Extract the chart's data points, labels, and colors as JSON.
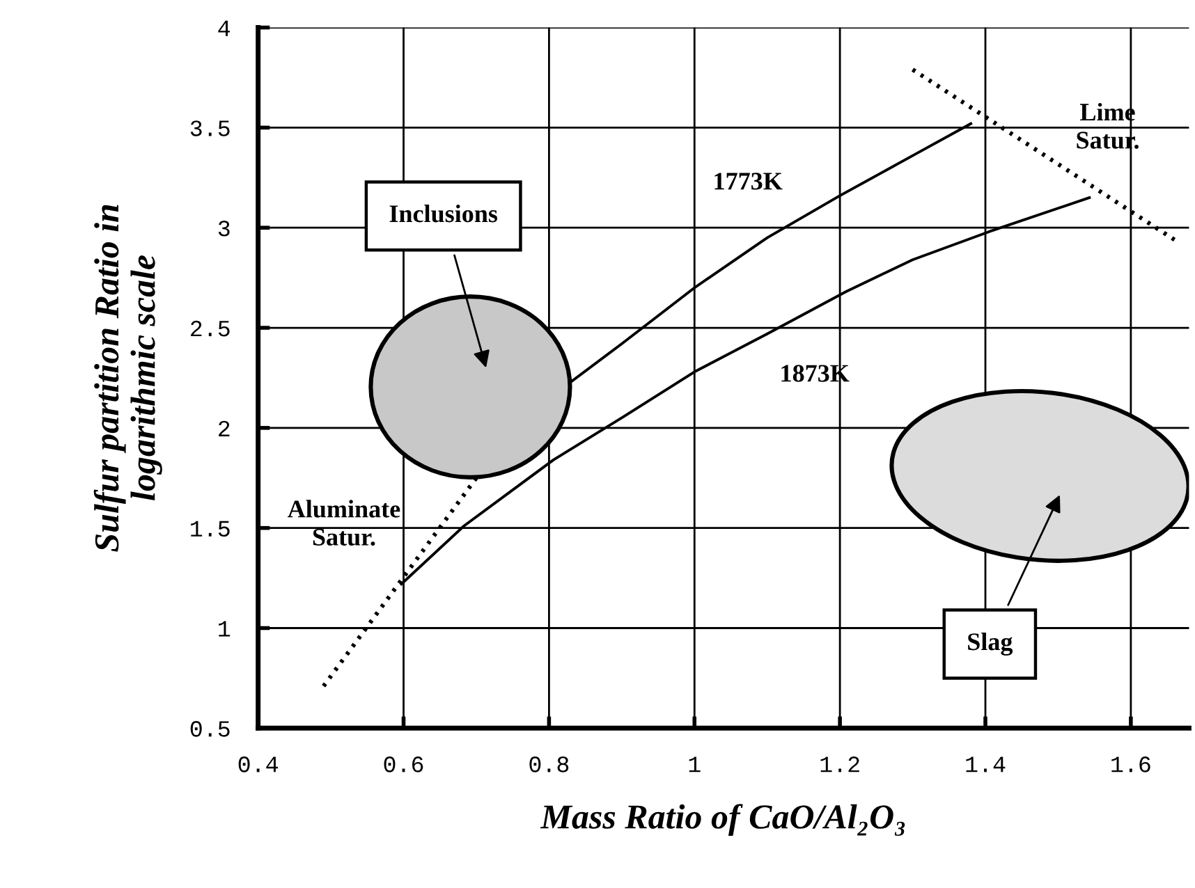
{
  "chart_data": {
    "type": "line",
    "xlabel": "Mass Ratio of CaO/Al₂O₃",
    "ylabel": "Sulfur partition Ratio in\nlogarithmic scale",
    "series": [
      {
        "name": "1773K",
        "color": "#000000",
        "line_style": "solid",
        "x": [
          0.83,
          0.9,
          1.0,
          1.1,
          1.2,
          1.3,
          1.38
        ],
        "values": [
          2.23,
          2.42,
          2.7,
          2.95,
          3.16,
          3.36,
          3.52
        ]
      },
      {
        "name": "1873K",
        "color": "#000000",
        "line_style": "solid",
        "x": [
          0.597,
          0.683,
          0.806,
          0.9,
          1.0,
          1.1,
          1.208,
          1.3,
          1.405,
          1.543
        ],
        "values": [
          1.22,
          1.51,
          1.84,
          2.05,
          2.28,
          2.47,
          2.68,
          2.84,
          2.98,
          3.15
        ]
      },
      {
        "name": "Aluminate Satur.",
        "color": "#000000",
        "line_style": "dotted",
        "x": [
          0.49,
          0.7
        ],
        "values": [
          0.71,
          1.75
        ]
      },
      {
        "name": "Lime Satur.",
        "color": "#000000",
        "line_style": "dotted",
        "x": [
          1.3,
          1.66
        ],
        "values": [
          3.79,
          2.94
        ]
      }
    ],
    "annotations": [
      "Inclusions",
      "Slag"
    ],
    "xlim": [
      0.4,
      1.68
    ],
    "ylim": [
      0.5,
      4
    ],
    "xticks": [
      0.4,
      0.6,
      0.8,
      1,
      1.2,
      1.4,
      1.6
    ],
    "yticks": [
      0.5,
      1,
      1.5,
      2,
      2.5,
      3,
      3.5,
      4
    ],
    "grid": true
  }
}
